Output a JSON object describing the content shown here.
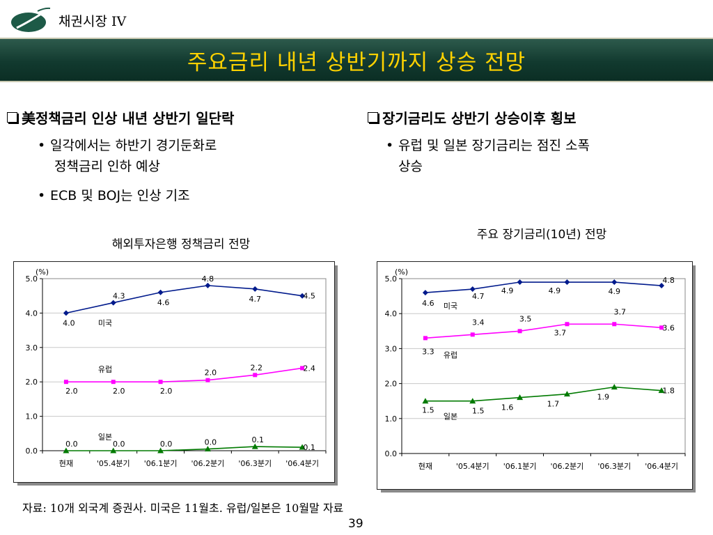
{
  "header": {
    "section": "채권시장 IV",
    "title": "주요금리 내년 상반기까지 상승 전망"
  },
  "left": {
    "heading": "美정책금리 인상 내년 상반기 일단락",
    "bullets": [
      "일각에서는 하반기 경기둔화로",
      "정책금리 인하 예상",
      "ECB 및 BOJ는 인상 기조"
    ]
  },
  "right": {
    "heading": "장기금리도 상반기 상승이후 횡보",
    "bullets": [
      "유럽 및 일본 장기금리는 점진 소폭",
      "상승"
    ]
  },
  "bullet_symbol": "•",
  "chart_titles": [
    "해외투자은행 정책금리 전망",
    "주요 장기금리(10년) 전망"
  ],
  "source": "자료: 10개 외국계 증권사. 미국은 11월초. 유럽/일본은 10월말 자료",
  "page_number": "39",
  "colors": {
    "us": "#001a8c",
    "eu": "#ff00ff",
    "jp": "#007a00",
    "banner": "#123a2f",
    "title": "#ffd200"
  },
  "chart_data": [
    {
      "type": "line",
      "title": "해외투자은행 정책금리 전망",
      "unit": "(%)",
      "categories": [
        "현재",
        "'05.4분기",
        "'06.1분기",
        "'06.2분기",
        "'06.3분기",
        "'06.4분기"
      ],
      "ylim": [
        0,
        5
      ],
      "yticks": [
        "0.0",
        "1.0",
        "2.0",
        "3.0",
        "4.0",
        "5.0"
      ],
      "grid": true,
      "series": [
        {
          "name": "미국",
          "color": "#001a8c",
          "marker": "diamond",
          "values": [
            4.0,
            4.3,
            4.6,
            4.8,
            4.7,
            4.5
          ],
          "labels": [
            "4.0",
            "4.3",
            "4.6",
            "4.8",
            "4.7",
            "4.5"
          ]
        },
        {
          "name": "유럽",
          "color": "#ff00ff",
          "marker": "square",
          "values": [
            2.0,
            2.0,
            2.0,
            2.05,
            2.2,
            2.4
          ],
          "labels": [
            "2.0",
            "2.0",
            "2.0",
            "2.0",
            "2.2",
            "2.4"
          ]
        },
        {
          "name": "일본",
          "color": "#007a00",
          "marker": "triangle",
          "values": [
            0.0,
            0.0,
            0.0,
            0.05,
            0.12,
            0.1
          ],
          "labels": [
            "0.0",
            "0.0",
            "0.0",
            "0.0",
            "0.1",
            "0.1"
          ]
        }
      ]
    },
    {
      "type": "line",
      "title": "주요 장기금리(10년) 전망",
      "unit": "(%)",
      "categories": [
        "현재",
        "'05.4분기",
        "'06.1분기",
        "'06.2분기",
        "'06.3분기",
        "'06.4분기"
      ],
      "ylim": [
        0,
        5
      ],
      "yticks": [
        "0.0",
        "1.0",
        "2.0",
        "3.0",
        "4.0",
        "5.0"
      ],
      "grid": true,
      "series": [
        {
          "name": "미국",
          "color": "#001a8c",
          "marker": "diamond",
          "values": [
            4.6,
            4.7,
            4.9,
            4.9,
            4.9,
            4.8
          ],
          "labels": [
            "4.6",
            "4.7",
            "4.9",
            "4.9",
            "4.9",
            "4.8"
          ]
        },
        {
          "name": "유럽",
          "color": "#ff00ff",
          "marker": "square",
          "values": [
            3.3,
            3.4,
            3.5,
            3.7,
            3.7,
            3.6
          ],
          "labels": [
            "3.3",
            "3.4",
            "3.5",
            "3.7",
            "3.7",
            "3.6"
          ]
        },
        {
          "name": "일본",
          "color": "#007a00",
          "marker": "triangle",
          "values": [
            1.5,
            1.5,
            1.6,
            1.7,
            1.9,
            1.8
          ],
          "labels": [
            "1.5",
            "1.5",
            "1.6",
            "1.7",
            "1.9",
            "1.8"
          ]
        }
      ]
    }
  ]
}
